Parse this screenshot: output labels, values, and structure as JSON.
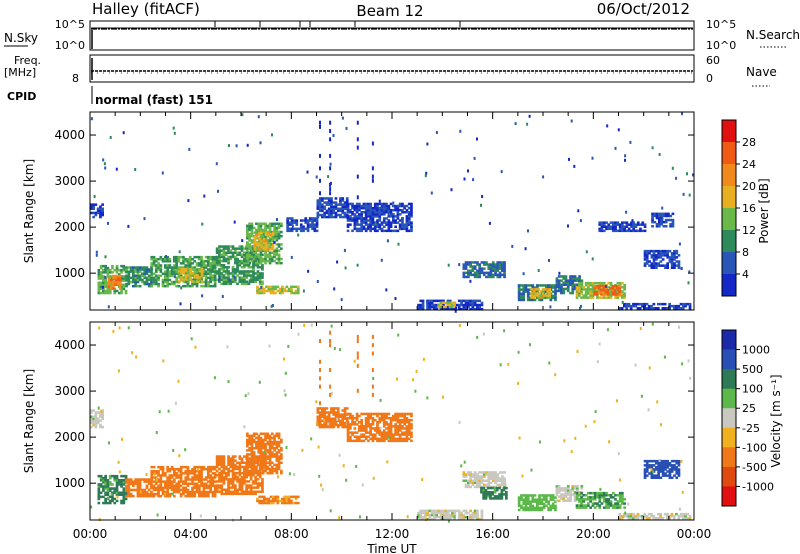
{
  "header": {
    "station": "Halley (fitACF)",
    "beam": "Beam 12",
    "date": "06/Oct/2012"
  },
  "status_panels": {
    "nsky": {
      "left_label": "N.Sky",
      "right_label": "N.Search",
      "left_ticks": [
        "10^5",
        "10^0"
      ],
      "right_ticks": [
        "10^5",
        "10^0"
      ]
    },
    "freq": {
      "left_label_line1": "Freq.",
      "left_label_line2": "[MHz]",
      "right_label": "Nave",
      "left_ticks": [
        "8"
      ],
      "right_ticks": [
        "60",
        "0"
      ]
    },
    "cpid": {
      "label": "CPID",
      "text": "normal (fast) 151"
    }
  },
  "chart_data": [
    {
      "type": "heatmap",
      "title": "",
      "xlabel": "",
      "ylabel": "Slant Range [km]",
      "xlim": [
        "00:00",
        "24:00"
      ],
      "ylim": [
        200,
        4500
      ],
      "x_ticks": [
        "00:00",
        "04:00",
        "08:00",
        "12:00",
        "16:00",
        "20:00",
        "00:00"
      ],
      "y_ticks": [
        1000,
        2000,
        3000,
        4000
      ],
      "colorbar": {
        "label": "Power [dB]",
        "ticks": [
          "28",
          "24",
          "20",
          "16",
          "12",
          "8",
          "4"
        ],
        "range": [
          0,
          30
        ]
      },
      "patches": [
        {
          "t0": 0.3,
          "t1": 1.4,
          "r0": 550,
          "r1": 1150,
          "v": 13
        },
        {
          "t0": 0.7,
          "t1": 1.2,
          "r0": 650,
          "r1": 950,
          "v": 23
        },
        {
          "t0": 1.4,
          "t1": 2.4,
          "r0": 700,
          "r1": 1150,
          "v": 10
        },
        {
          "t0": 2.4,
          "t1": 5.0,
          "r0": 700,
          "r1": 1350,
          "v": 12
        },
        {
          "t0": 3.5,
          "t1": 4.4,
          "r0": 800,
          "r1": 1100,
          "v": 17
        },
        {
          "t0": 5.0,
          "t1": 6.8,
          "r0": 750,
          "r1": 1600,
          "v": 11
        },
        {
          "t0": 6.2,
          "t1": 7.6,
          "r0": 1200,
          "r1": 2100,
          "v": 13
        },
        {
          "t0": 6.5,
          "t1": 7.3,
          "r0": 1500,
          "r1": 1900,
          "v": 18
        },
        {
          "t0": 6.6,
          "t1": 8.3,
          "r0": 550,
          "r1": 700,
          "v": 16
        },
        {
          "t0": 7.8,
          "t1": 9.0,
          "r0": 1900,
          "r1": 2200,
          "v": 5
        },
        {
          "t0": 9.0,
          "t1": 10.2,
          "r0": 2200,
          "r1": 2650,
          "v": 5
        },
        {
          "t0": 10.2,
          "t1": 12.8,
          "r0": 1900,
          "r1": 2500,
          "v": 4
        },
        {
          "t0": 0.0,
          "t1": 0.5,
          "r0": 2200,
          "r1": 2500,
          "v": 5
        },
        {
          "t0": 13.0,
          "t1": 15.6,
          "r0": 200,
          "r1": 400,
          "v": 3
        },
        {
          "t0": 13.8,
          "t1": 14.5,
          "r0": 250,
          "r1": 350,
          "v": 17
        },
        {
          "t0": 14.8,
          "t1": 16.5,
          "r0": 900,
          "r1": 1250,
          "v": 7
        },
        {
          "t0": 17.0,
          "t1": 18.5,
          "r0": 400,
          "r1": 750,
          "v": 9
        },
        {
          "t0": 17.5,
          "t1": 18.3,
          "r0": 450,
          "r1": 650,
          "v": 18
        },
        {
          "t0": 18.5,
          "t1": 19.5,
          "r0": 550,
          "r1": 950,
          "v": 8
        },
        {
          "t0": 19.3,
          "t1": 21.2,
          "r0": 450,
          "r1": 800,
          "v": 15
        },
        {
          "t0": 20.0,
          "t1": 21.0,
          "r0": 520,
          "r1": 720,
          "v": 25
        },
        {
          "t0": 21.0,
          "t1": 23.8,
          "r0": 220,
          "r1": 330,
          "v": 4
        },
        {
          "t0": 22.3,
          "t1": 23.2,
          "r0": 2000,
          "r1": 2300,
          "v": 4
        },
        {
          "t0": 22.0,
          "t1": 23.4,
          "r0": 1100,
          "r1": 1500,
          "v": 5
        },
        {
          "t0": 20.2,
          "t1": 22.0,
          "r0": 1900,
          "r1": 2100,
          "v": 4
        }
      ]
    },
    {
      "type": "heatmap",
      "title": "",
      "xlabel": "Time UT",
      "ylabel": "Slant Range [km]",
      "xlim": [
        "00:00",
        "24:00"
      ],
      "ylim": [
        200,
        4500
      ],
      "x_ticks": [
        "00:00",
        "04:00",
        "08:00",
        "12:00",
        "16:00",
        "20:00",
        "00:00"
      ],
      "y_ticks": [
        1000,
        2000,
        3000,
        4000
      ],
      "colorbar": {
        "label": "Velocity [m s⁻¹]",
        "ticks": [
          "1000",
          "500",
          "100",
          "25",
          "-25",
          "-100",
          "-500",
          "-1000"
        ],
        "range": [
          -1200,
          1200
        ]
      },
      "patches": [
        {
          "t0": 0.3,
          "t1": 1.4,
          "r0": 550,
          "r1": 1150,
          "v": 120
        },
        {
          "t0": 1.4,
          "t1": 2.4,
          "r0": 700,
          "r1": 1100,
          "v": -150
        },
        {
          "t0": 2.4,
          "t1": 5.0,
          "r0": 700,
          "r1": 1350,
          "v": -350
        },
        {
          "t0": 5.0,
          "t1": 6.8,
          "r0": 750,
          "r1": 1600,
          "v": -400
        },
        {
          "t0": 6.2,
          "t1": 7.6,
          "r0": 1200,
          "r1": 2100,
          "v": -450
        },
        {
          "t0": 6.6,
          "t1": 8.3,
          "r0": 550,
          "r1": 700,
          "v": -120
        },
        {
          "t0": 9.0,
          "t1": 10.2,
          "r0": 2200,
          "r1": 2650,
          "v": -350
        },
        {
          "t0": 10.2,
          "t1": 12.8,
          "r0": 1900,
          "r1": 2500,
          "v": -450
        },
        {
          "t0": 0.0,
          "t1": 0.5,
          "r0": 2200,
          "r1": 2600,
          "v": 0
        },
        {
          "t0": 13.0,
          "t1": 15.6,
          "r0": 200,
          "r1": 400,
          "v": 0
        },
        {
          "t0": 14.8,
          "t1": 16.5,
          "r0": 900,
          "r1": 1250,
          "v": 0
        },
        {
          "t0": 15.5,
          "t1": 16.5,
          "r0": 650,
          "r1": 900,
          "v": 120
        },
        {
          "t0": 17.0,
          "t1": 18.5,
          "r0": 400,
          "r1": 750,
          "v": 60
        },
        {
          "t0": 18.5,
          "t1": 19.5,
          "r0": 600,
          "r1": 950,
          "v": 0
        },
        {
          "t0": 19.3,
          "t1": 21.2,
          "r0": 450,
          "r1": 800,
          "v": 90
        },
        {
          "t0": 21.0,
          "t1": 23.8,
          "r0": 220,
          "r1": 330,
          "v": 0
        },
        {
          "t0": 22.0,
          "t1": 23.4,
          "r0": 1100,
          "r1": 1500,
          "v": 700
        }
      ]
    }
  ]
}
